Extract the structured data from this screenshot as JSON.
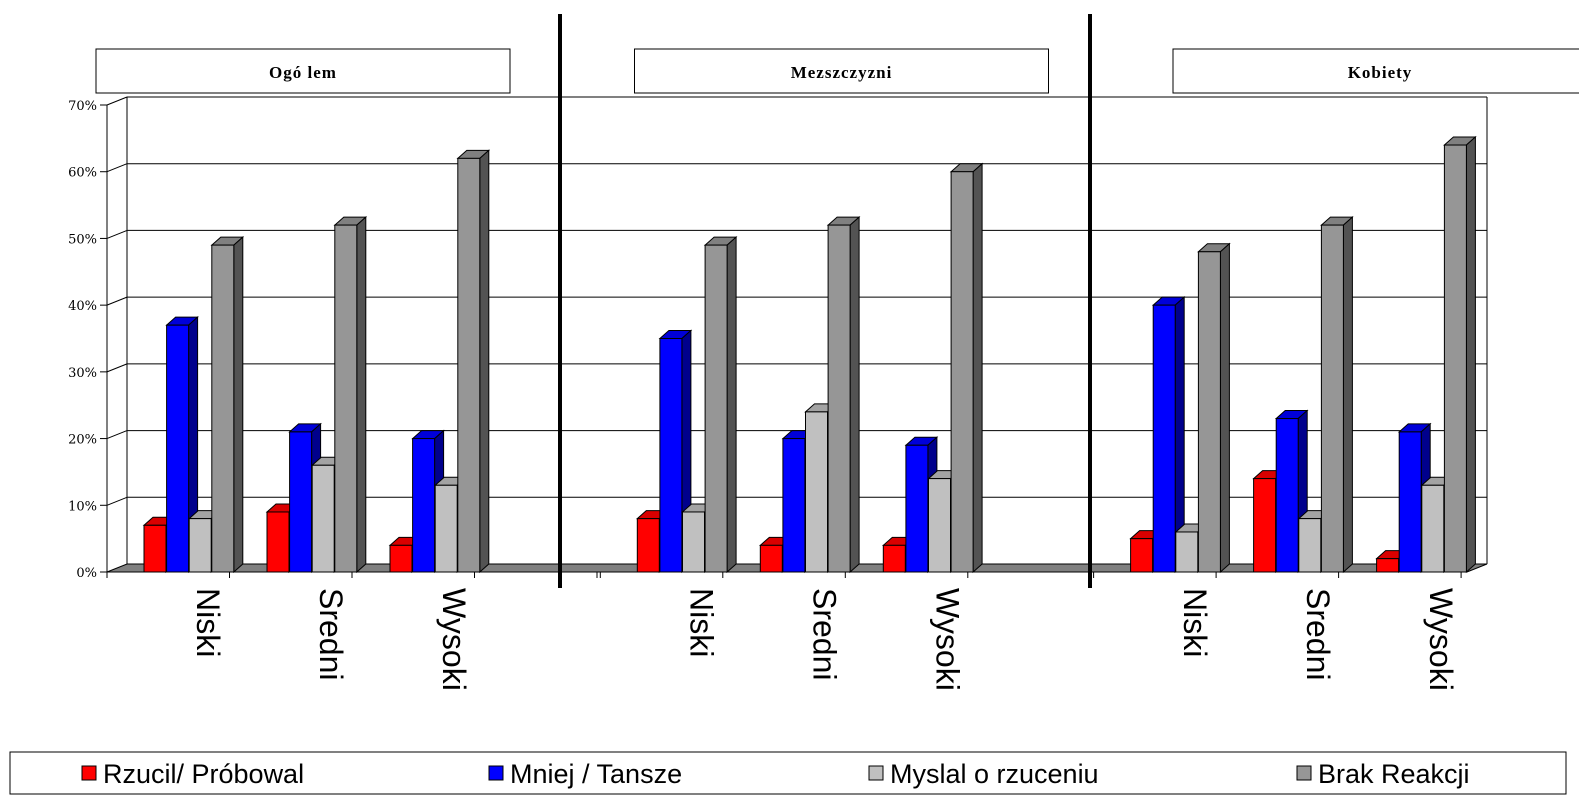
{
  "chart_data": {
    "type": "bar",
    "ylim": [
      0,
      70
    ],
    "y_ticks": [
      "0%",
      "10%",
      "20%",
      "30%",
      "40%",
      "50%",
      "60%",
      "70%"
    ],
    "grid": true,
    "legend_position": "bottom",
    "categories": [
      "Niski",
      "Sredni",
      "Wysoki"
    ],
    "series_colors": [
      "#ff0000",
      "#0000ff",
      "#c0c0c0",
      "#969696"
    ],
    "legend": [
      "Rzucil/ Próbowal",
      "Mniej / Tansze",
      "Myslal o rzuceniu",
      "Brak Reakcji"
    ],
    "panels": [
      {
        "title": "Ogó lem",
        "series": [
          {
            "name": "Rzucil/ Próbowal",
            "values": [
              7,
              9,
              4
            ]
          },
          {
            "name": "Mniej / Tansze",
            "values": [
              37,
              21,
              20
            ]
          },
          {
            "name": "Myslal o rzuceniu",
            "values": [
              8,
              16,
              13
            ]
          },
          {
            "name": "Brak Reakcji",
            "values": [
              49,
              52,
              62
            ]
          }
        ]
      },
      {
        "title": "Mezszczyzni",
        "series": [
          {
            "name": "Rzucil/ Próbowal",
            "values": [
              8,
              4,
              4
            ]
          },
          {
            "name": "Mniej / Tansze",
            "values": [
              35,
              20,
              19
            ]
          },
          {
            "name": "Myslal o rzuceniu",
            "values": [
              9,
              24,
              14
            ]
          },
          {
            "name": "Brak Reakcji",
            "values": [
              49,
              52,
              60
            ]
          }
        ]
      },
      {
        "title": "Kobiety",
        "series": [
          {
            "name": "Rzucil/ Próbowal",
            "values": [
              5,
              14,
              2
            ]
          },
          {
            "name": "Mniej / Tansze",
            "values": [
              40,
              23,
              21
            ]
          },
          {
            "name": "Myslal o rzuceniu",
            "values": [
              6,
              8,
              13
            ]
          },
          {
            "name": "Brak Reakcji",
            "values": [
              48,
              52,
              64
            ]
          }
        ]
      }
    ]
  }
}
